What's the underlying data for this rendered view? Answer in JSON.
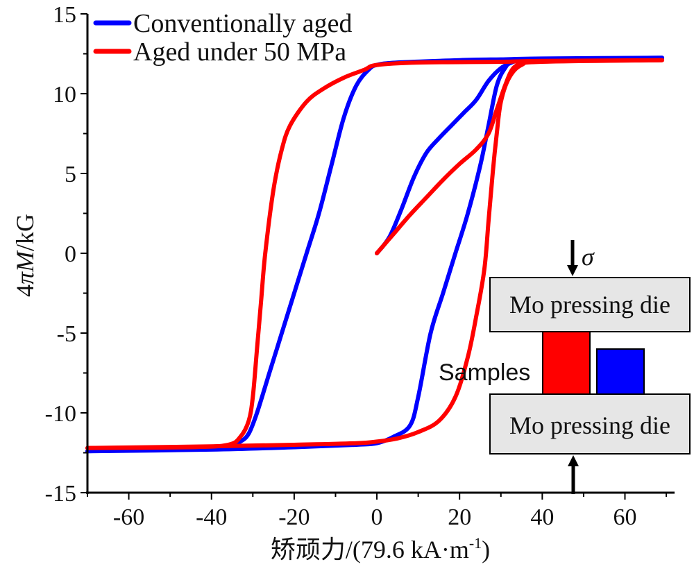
{
  "chart_data": {
    "type": "line",
    "xlabel": "矫顽力/(79.6 kA·m",
    "xlabel_superscript": "-1",
    "xlabel_close": ")",
    "ylabel_prefix": "4",
    "ylabel_pi": "π",
    "ylabel_M": "M",
    "ylabel_suffix": "/kG",
    "xlim": [
      -70,
      72
    ],
    "ylim": [
      -15,
      15
    ],
    "x_ticks": [
      -60,
      -40,
      -20,
      0,
      20,
      40,
      60
    ],
    "x_tick_labels": [
      "-60",
      "-40",
      "-20",
      "0",
      "20",
      "40",
      "60"
    ],
    "y_ticks": [
      -15,
      -10,
      -5,
      0,
      5,
      10,
      15
    ],
    "y_tick_labels": [
      "-15",
      "-10",
      "-5",
      "0",
      "5",
      "10",
      "15"
    ],
    "legend_position": "top-left",
    "series": [
      {
        "name": "Conventionally aged",
        "color": "#0000ff",
        "loop": [
          [
            69,
            12.25
          ],
          [
            40,
            12.2
          ],
          [
            30,
            12.15
          ],
          [
            20,
            12.1
          ],
          [
            5,
            11.95
          ],
          [
            0,
            11.8
          ],
          [
            -2,
            11.5
          ],
          [
            -5,
            10.5
          ],
          [
            -8,
            8.5
          ],
          [
            -11,
            5.5
          ],
          [
            -14,
            2.5
          ],
          [
            -17,
            0
          ],
          [
            -20,
            -2.5
          ],
          [
            -23,
            -5
          ],
          [
            -26,
            -7.5
          ],
          [
            -29,
            -10
          ],
          [
            -31,
            -11.3
          ],
          [
            -33,
            -11.8
          ],
          [
            -36,
            -12.1
          ],
          [
            -45,
            -12.25
          ],
          [
            -70,
            -12.4
          ]
        ],
        "return": [
          [
            -70,
            -12.4
          ],
          [
            -40,
            -12.3
          ],
          [
            -20,
            -12.15
          ],
          [
            -5,
            -12.0
          ],
          [
            0,
            -11.9
          ],
          [
            4,
            -11.5
          ],
          [
            8,
            -10.8
          ],
          [
            10,
            -9
          ],
          [
            13,
            -5
          ],
          [
            16,
            -2.5
          ],
          [
            19,
            0
          ],
          [
            22,
            2.5
          ],
          [
            25,
            5.5
          ],
          [
            27,
            8
          ],
          [
            29,
            10.5
          ],
          [
            31,
            11.6
          ],
          [
            33,
            12.0
          ],
          [
            40,
            12.15
          ],
          [
            69,
            12.25
          ]
        ],
        "initial": [
          [
            0,
            0
          ],
          [
            3,
            1
          ],
          [
            6,
            2.8
          ],
          [
            9,
            4.8
          ],
          [
            12,
            6.3
          ],
          [
            15,
            7.2
          ],
          [
            18,
            8.0
          ],
          [
            21,
            8.8
          ],
          [
            24,
            9.6
          ],
          [
            27,
            10.8
          ],
          [
            30,
            11.6
          ],
          [
            33,
            12.0
          ]
        ]
      },
      {
        "name": "Aged under 50 MPa",
        "color": "#ff0000",
        "loop": [
          [
            69,
            12.1
          ],
          [
            40,
            12.05
          ],
          [
            30,
            12.0
          ],
          [
            10,
            11.95
          ],
          [
            0,
            11.8
          ],
          [
            -3,
            11.5
          ],
          [
            -8,
            11.0
          ],
          [
            -13,
            10.3
          ],
          [
            -17,
            9.5
          ],
          [
            -21,
            8
          ],
          [
            -23,
            6.5
          ],
          [
            -25,
            4
          ],
          [
            -27,
            0
          ],
          [
            -28,
            -3
          ],
          [
            -29,
            -6
          ],
          [
            -30,
            -9
          ],
          [
            -31,
            -10.5
          ],
          [
            -33,
            -11.5
          ],
          [
            -36,
            -12.0
          ],
          [
            -45,
            -12.15
          ],
          [
            -70,
            -12.2
          ]
        ],
        "return": [
          [
            -70,
            -12.2
          ],
          [
            -40,
            -12.1
          ],
          [
            -20,
            -12.0
          ],
          [
            -5,
            -11.9
          ],
          [
            0,
            -11.8
          ],
          [
            5,
            -11.6
          ],
          [
            10,
            -11.2
          ],
          [
            15,
            -10.5
          ],
          [
            19,
            -9
          ],
          [
            22,
            -6.5
          ],
          [
            24,
            -4
          ],
          [
            26,
            -1
          ],
          [
            27,
            2
          ],
          [
            28,
            5
          ],
          [
            29,
            7.5
          ],
          [
            30,
            9.5
          ],
          [
            32,
            11.0
          ],
          [
            35,
            11.8
          ],
          [
            40,
            12.0
          ],
          [
            69,
            12.1
          ]
        ],
        "initial": [
          [
            0,
            0
          ],
          [
            4,
            1.2
          ],
          [
            8,
            2.4
          ],
          [
            12,
            3.5
          ],
          [
            16,
            4.6
          ],
          [
            20,
            5.6
          ],
          [
            24,
            6.5
          ],
          [
            27,
            7.5
          ],
          [
            29,
            9.0
          ],
          [
            31,
            10.5
          ],
          [
            33,
            11.6
          ],
          [
            36,
            12.0
          ]
        ]
      }
    ],
    "inset": {
      "sigma_label": "σ",
      "top_die_label": "Mo pressing die",
      "bottom_die_label": "Mo pressing die",
      "samples_label": "Samples",
      "die_color": "#e6e6e6",
      "sample_colors": [
        "#ff0000",
        "#0000ff"
      ]
    }
  }
}
